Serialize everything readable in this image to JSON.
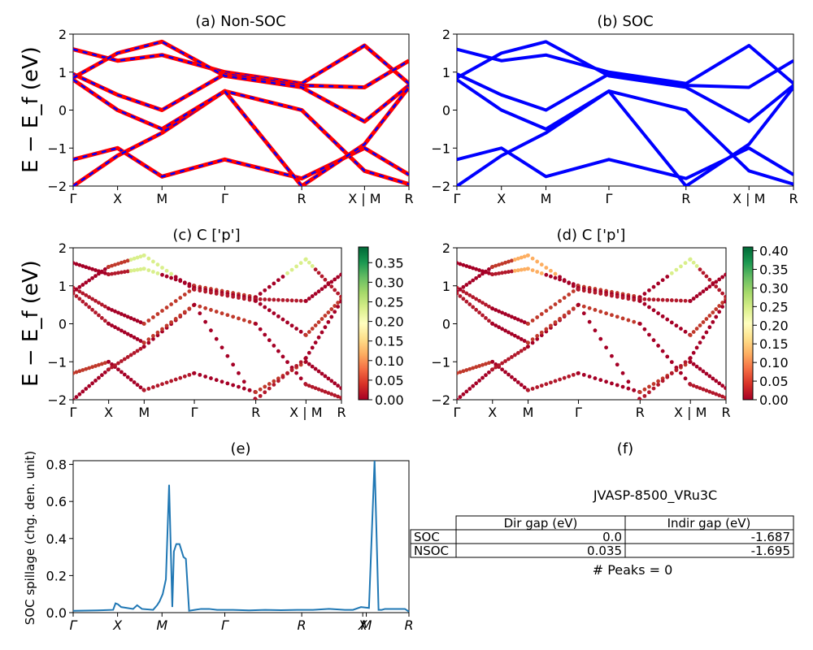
{
  "colors": {
    "nonsoc": "#ff0000",
    "soc": "#0000ff",
    "spillage": "#1f77b4"
  },
  "panels": {
    "a": {
      "title": "(a) Non-SOC"
    },
    "b": {
      "title": "(b) SOC"
    },
    "c": {
      "title": "(c)  C ['p']"
    },
    "d": {
      "title": "(d) C ['p']"
    },
    "e": {
      "title": "(e)"
    },
    "f": {
      "title": "(f)"
    }
  },
  "ylabel_band": "E − E_f (eV)",
  "kpath_labels": [
    "Γ",
    "X",
    "M",
    "Γ",
    "R",
    "X | M",
    "R"
  ],
  "kpath_labels_e": [
    "Γ",
    "X",
    "M",
    "Γ",
    "R",
    "X",
    "M",
    "R"
  ],
  "colorbars": {
    "c": {
      "ticks": [
        "0.00",
        "0.05",
        "0.10",
        "0.15",
        "0.20",
        "0.25",
        "0.30",
        "0.35"
      ]
    },
    "d": {
      "ticks": [
        "0.00",
        "0.05",
        "0.10",
        "0.15",
        "0.20",
        "0.25",
        "0.30",
        "0.35",
        "0.40"
      ]
    }
  },
  "table": {
    "title": "JVASP-8500_VRu3C",
    "headers": [
      "Dir gap (eV)",
      "Indir gap (eV)"
    ],
    "rows": [
      {
        "label": "SOC",
        "dir": "0.0",
        "indir": "-1.687"
      },
      {
        "label": "NSOC",
        "dir": "0.035",
        "indir": "-1.695"
      }
    ],
    "peaks": "# Peaks = 0"
  },
  "chart_data": [
    {
      "type": "line",
      "title": "(a) Non-SOC",
      "ylabel": "E − E_f (eV)",
      "ylim": [
        -2,
        2
      ],
      "yticks": [
        -2,
        -1,
        0,
        1,
        2
      ],
      "xticks": [
        "Γ",
        "X",
        "M",
        "Γ",
        "R",
        "X | M",
        "R"
      ],
      "kpath_positions": [
        0,
        0.5,
        1.0,
        1.707,
        2.573,
        3.28,
        3.78
      ],
      "series": [
        {
          "style": "solid",
          "color": "#ff0000",
          "x": [
            0,
            0.5,
            1.0,
            1.707,
            2.573,
            3.28,
            3.78
          ],
          "y": [
            1.6,
            1.3,
            1.45,
            1.0,
            0.7,
            1.7,
            0.7
          ]
        },
        {
          "style": "solid",
          "color": "#ff0000",
          "x": [
            0,
            0.5,
            1.0,
            1.707,
            2.573,
            3.28,
            3.78
          ],
          "y": [
            0.95,
            0.4,
            0.0,
            0.95,
            0.65,
            0.6,
            1.3
          ]
        },
        {
          "style": "solid",
          "color": "#ff0000",
          "x": [
            0,
            0.5,
            1.0,
            1.707,
            2.573,
            3.28,
            3.78
          ],
          "y": [
            0.85,
            1.5,
            1.8,
            0.9,
            0.6,
            -0.3,
            0.65
          ]
        },
        {
          "style": "solid",
          "color": "#ff0000",
          "x": [
            0,
            0.5,
            1.0,
            1.707,
            2.573,
            3.28,
            3.78
          ],
          "y": [
            -1.3,
            -1.0,
            -1.75,
            -1.3,
            -1.8,
            -1.0,
            -1.7
          ]
        },
        {
          "style": "solid",
          "color": "#ff0000",
          "x": [
            0,
            0.5,
            1.0,
            1.707,
            2.573,
            3.28,
            3.78
          ],
          "y": [
            -2.0,
            -1.2,
            -0.6,
            0.5,
            0.0,
            -1.6,
            -1.95
          ]
        },
        {
          "style": "solid",
          "color": "#ff0000",
          "x": [
            0,
            0.5,
            1.0,
            1.707,
            2.573,
            3.28,
            3.78
          ],
          "y": [
            0.8,
            0.0,
            -0.5,
            0.5,
            -2.0,
            -0.9,
            0.6
          ]
        }
      ]
    },
    {
      "type": "line",
      "title": "(b) SOC",
      "ylim": [
        -2,
        2
      ],
      "yticks": [
        -2,
        -1,
        0,
        1,
        2
      ],
      "xticks": [
        "Γ",
        "X",
        "M",
        "Γ",
        "R",
        "X | M",
        "R"
      ],
      "series": [
        {
          "style": "solid",
          "color": "#0000ff",
          "x": [
            0,
            0.5,
            1.0,
            1.707,
            2.573,
            3.28,
            3.78
          ],
          "y": [
            1.6,
            1.3,
            1.45,
            1.0,
            0.7,
            1.7,
            0.7
          ]
        },
        {
          "style": "solid",
          "color": "#0000ff",
          "x": [
            0,
            0.5,
            1.0,
            1.707,
            2.573,
            3.28,
            3.78
          ],
          "y": [
            0.95,
            0.4,
            0.0,
            0.95,
            0.65,
            0.6,
            1.3
          ]
        },
        {
          "style": "solid",
          "color": "#0000ff",
          "x": [
            0,
            0.5,
            1.0,
            1.707,
            2.573,
            3.28,
            3.78
          ],
          "y": [
            0.85,
            1.5,
            1.8,
            0.9,
            0.6,
            -0.3,
            0.65
          ]
        },
        {
          "style": "solid",
          "color": "#0000ff",
          "x": [
            0,
            0.5,
            1.0,
            1.707,
            2.573,
            3.28,
            3.78
          ],
          "y": [
            -1.3,
            -1.0,
            -1.75,
            -1.3,
            -1.8,
            -1.0,
            -1.7
          ]
        },
        {
          "style": "solid",
          "color": "#0000ff",
          "x": [
            0,
            0.5,
            1.0,
            1.707,
            2.573,
            3.28,
            3.78
          ],
          "y": [
            -2.0,
            -1.2,
            -0.6,
            0.5,
            0.0,
            -1.6,
            -1.95
          ]
        },
        {
          "style": "solid",
          "color": "#0000ff",
          "x": [
            0,
            0.5,
            1.0,
            1.707,
            2.573,
            3.28,
            3.78
          ],
          "y": [
            0.8,
            0.0,
            -0.5,
            0.5,
            -2.0,
            -0.9,
            0.6
          ]
        }
      ]
    },
    {
      "type": "scatter",
      "title": "(c)  C ['p']",
      "ylim": [
        -2,
        2
      ],
      "colorbar_range": [
        0,
        0.39
      ],
      "xticks": [
        "Γ",
        "X",
        "M",
        "Γ",
        "R",
        "X | M",
        "R"
      ]
    },
    {
      "type": "scatter",
      "title": "(d) C ['p']",
      "ylim": [
        -2,
        2
      ],
      "colorbar_range": [
        0,
        0.41
      ],
      "xticks": [
        "Γ",
        "X",
        "M",
        "Γ",
        "R",
        "X | M",
        "R"
      ]
    },
    {
      "type": "line",
      "title": "(e)",
      "ylabel": "SOC spillage (chg. den. unit)",
      "ylim": [
        0,
        0.82
      ],
      "yticks": [
        0.0,
        0.2,
        0.4,
        0.6,
        0.8
      ],
      "xticks": [
        "Γ",
        "X",
        "M",
        "Γ",
        "R",
        "X",
        "M",
        "R"
      ],
      "series": [
        {
          "name": "",
          "color": "#1f77b4",
          "x": [
            0,
            0.3,
            0.5,
            0.53,
            0.56,
            0.6,
            0.75,
            0.8,
            0.86,
            1.0,
            1.05,
            1.08,
            1.12,
            1.16,
            1.2,
            1.24,
            1.26,
            1.29,
            1.33,
            1.38,
            1.41,
            1.45,
            1.52,
            1.6,
            1.7,
            1.8,
            2.0,
            2.2,
            2.4,
            2.6,
            2.8,
            3.0,
            3.2,
            3.4,
            3.5,
            3.6,
            3.7,
            3.77,
            3.82,
            3.86,
            3.9,
            4.0,
            4.15,
            4.2
          ],
          "y": [
            0.01,
            0.012,
            0.015,
            0.05,
            0.045,
            0.03,
            0.02,
            0.04,
            0.02,
            0.015,
            0.04,
            0.06,
            0.1,
            0.18,
            0.69,
            0.03,
            0.33,
            0.37,
            0.37,
            0.3,
            0.29,
            0.01,
            0.015,
            0.02,
            0.02,
            0.015,
            0.015,
            0.012,
            0.015,
            0.013,
            0.015,
            0.015,
            0.02,
            0.015,
            0.015,
            0.03,
            0.025,
            0.82,
            0.015,
            0.015,
            0.02,
            0.02,
            0.02,
            0.005
          ]
        }
      ]
    }
  ]
}
